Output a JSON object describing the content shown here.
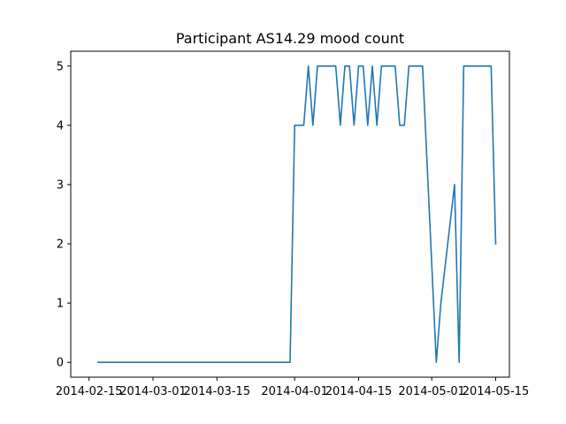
{
  "chart_data": {
    "type": "line",
    "title": "Participant AS14.29 mood count",
    "xlabel": "",
    "ylabel": "",
    "x_axis_type": "date",
    "xlim": [
      "2014-02-11",
      "2014-05-18"
    ],
    "ylim": [
      -0.25,
      5.25
    ],
    "grid": false,
    "legend": "none",
    "line_color": "#1f77b4",
    "x_ticks": [
      "2014-02-15",
      "2014-03-01",
      "2014-03-15",
      "2014-04-01",
      "2014-04-15",
      "2014-05-01",
      "2014-05-15"
    ],
    "y_ticks": [
      0,
      1,
      2,
      3,
      4,
      5
    ],
    "series": [
      {
        "x": [
          "2014-02-17",
          "2014-03-31",
          "2014-04-01",
          "2014-04-03",
          "2014-04-04",
          "2014-04-05",
          "2014-04-06",
          "2014-04-10",
          "2014-04-11",
          "2014-04-12",
          "2014-04-13",
          "2014-04-14",
          "2014-04-15",
          "2014-04-16",
          "2014-04-17",
          "2014-04-18",
          "2014-04-19",
          "2014-04-20",
          "2014-04-23",
          "2014-04-24",
          "2014-04-25",
          "2014-04-26",
          "2014-04-29",
          "2014-05-02",
          "2014-05-03",
          "2014-05-06",
          "2014-05-07",
          "2014-05-08",
          "2014-05-14",
          "2014-05-15"
        ],
        "values": [
          0,
          0,
          4,
          4,
          5,
          4,
          5,
          5,
          4,
          5,
          5,
          4,
          5,
          5,
          4,
          5,
          4,
          5,
          5,
          4,
          4,
          5,
          5,
          0,
          1,
          3,
          0,
          5,
          5,
          2
        ]
      }
    ]
  }
}
